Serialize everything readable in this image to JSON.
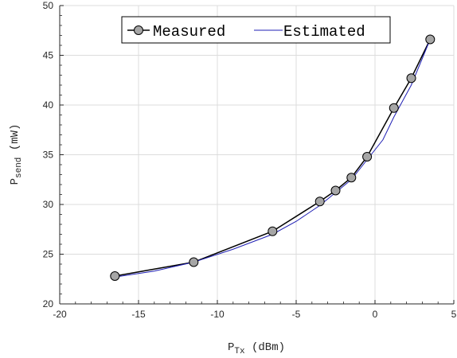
{
  "chart_data": {
    "type": "line",
    "xlabel": {
      "main": "P",
      "sub": "Tx",
      "unit": "(dBm)"
    },
    "ylabel": {
      "main": "P",
      "sub": "send",
      "unit": "(mW)"
    },
    "xlim": [
      -20,
      5
    ],
    "ylim": [
      20,
      50
    ],
    "x_ticks": [
      -20,
      -15,
      -10,
      -5,
      0,
      5
    ],
    "y_ticks": [
      20,
      25,
      30,
      35,
      40,
      45,
      50
    ],
    "grid": true,
    "legend": "top-right",
    "series": [
      {
        "name": "Measured",
        "color": "#000000",
        "marker_color": "#a6a6a6",
        "x": [
          -16.5,
          -11.5,
          -6.5,
          -3.5,
          -2.5,
          -1.5,
          -0.5,
          1.2,
          2.3,
          3.5
        ],
        "y": [
          22.8,
          24.2,
          27.3,
          30.3,
          31.4,
          32.7,
          34.8,
          39.7,
          42.7,
          46.6
        ]
      },
      {
        "name": "Estimated",
        "color": "#1f1fb4",
        "x": [
          -16.5,
          -14,
          -11.5,
          -9,
          -6.5,
          -5,
          -3.5,
          -2.5,
          -1.5,
          -0.5,
          0.5,
          1.2,
          2.3,
          3.5
        ],
        "y": [
          22.7,
          23.3,
          24.2,
          25.5,
          27.0,
          28.3,
          29.9,
          31.2,
          32.5,
          34.5,
          36.5,
          38.8,
          42.0,
          46.6
        ]
      }
    ]
  }
}
